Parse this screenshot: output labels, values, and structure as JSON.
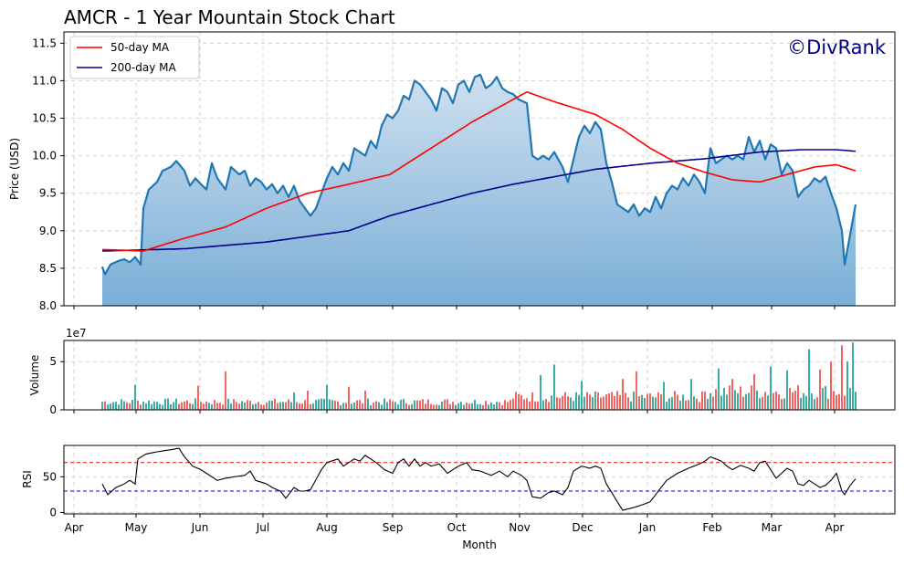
{
  "chart_data": {
    "type": "area",
    "title": "AMCR - 1 Year Mountain Stock Chart",
    "watermark": "©DivRank",
    "xlabel": "Month",
    "x_ticks": [
      "Apr",
      "May",
      "Jun",
      "Jul",
      "Aug",
      "Sep",
      "Oct",
      "Nov",
      "Dec",
      "Jan",
      "Feb",
      "Mar",
      "Apr"
    ],
    "colors": {
      "price": "#1f77b4",
      "area_top": "#cfe0ef",
      "area_bottom": "#7aaed6",
      "ma50": "#ff0000",
      "ma200": "#00008b",
      "vol_up": "#26a69a",
      "vol_down": "#ef5350",
      "rsi": "#000000",
      "rsi_upper": "#ff0000",
      "rsi_lower": "#0000ff",
      "watermark": "#000080"
    },
    "price_panel": {
      "ylabel": "Price (USD)",
      "ylim": [
        8.0,
        11.65
      ],
      "y_ticks": [
        "8.0",
        "8.5",
        "9.0",
        "9.5",
        "10.0",
        "10.5",
        "11.0",
        "11.5"
      ],
      "legend": [
        "50-day MA",
        "200-day MA"
      ],
      "legend_position": "top-left",
      "price_keyframes": [
        [
          0,
          8.52
        ],
        [
          1,
          8.42
        ],
        [
          3,
          8.55
        ],
        [
          6,
          8.6
        ],
        [
          8,
          8.62
        ],
        [
          10,
          8.58
        ],
        [
          12,
          8.65
        ],
        [
          14,
          8.55
        ],
        [
          15,
          9.3
        ],
        [
          17,
          9.55
        ],
        [
          20,
          9.65
        ],
        [
          22,
          9.8
        ],
        [
          25,
          9.85
        ],
        [
          27,
          9.93
        ],
        [
          30,
          9.8
        ],
        [
          32,
          9.6
        ],
        [
          34,
          9.7
        ],
        [
          36,
          9.62
        ],
        [
          38,
          9.55
        ],
        [
          40,
          9.9
        ],
        [
          42,
          9.7
        ],
        [
          45,
          9.55
        ],
        [
          47,
          9.85
        ],
        [
          50,
          9.75
        ],
        [
          52,
          9.8
        ],
        [
          54,
          9.6
        ],
        [
          56,
          9.7
        ],
        [
          58,
          9.65
        ],
        [
          60,
          9.55
        ],
        [
          62,
          9.62
        ],
        [
          64,
          9.5
        ],
        [
          66,
          9.6
        ],
        [
          68,
          9.45
        ],
        [
          70,
          9.6
        ],
        [
          72,
          9.4
        ],
        [
          74,
          9.3
        ],
        [
          76,
          9.2
        ],
        [
          78,
          9.3
        ],
        [
          80,
          9.5
        ],
        [
          82,
          9.7
        ],
        [
          84,
          9.85
        ],
        [
          86,
          9.75
        ],
        [
          88,
          9.9
        ],
        [
          90,
          9.8
        ],
        [
          92,
          10.1
        ],
        [
          94,
          10.05
        ],
        [
          96,
          10.0
        ],
        [
          98,
          10.2
        ],
        [
          100,
          10.1
        ],
        [
          102,
          10.4
        ],
        [
          104,
          10.55
        ],
        [
          106,
          10.5
        ],
        [
          108,
          10.6
        ],
        [
          110,
          10.8
        ],
        [
          112,
          10.75
        ],
        [
          114,
          11.0
        ],
        [
          116,
          10.95
        ],
        [
          118,
          10.85
        ],
        [
          120,
          10.75
        ],
        [
          122,
          10.6
        ],
        [
          124,
          10.9
        ],
        [
          126,
          10.85
        ],
        [
          128,
          10.7
        ],
        [
          130,
          10.95
        ],
        [
          132,
          11.0
        ],
        [
          134,
          10.85
        ],
        [
          136,
          11.05
        ],
        [
          138,
          11.08
        ],
        [
          140,
          10.9
        ],
        [
          142,
          10.95
        ],
        [
          144,
          11.05
        ],
        [
          146,
          10.9
        ],
        [
          148,
          10.85
        ],
        [
          150,
          10.82
        ],
        [
          152,
          10.75
        ],
        [
          155,
          10.7
        ],
        [
          157,
          10.0
        ],
        [
          159,
          9.95
        ],
        [
          161,
          10.0
        ],
        [
          163,
          9.95
        ],
        [
          165,
          10.05
        ],
        [
          168,
          9.85
        ],
        [
          170,
          9.65
        ],
        [
          172,
          9.95
        ],
        [
          174,
          10.25
        ],
        [
          176,
          10.4
        ],
        [
          178,
          10.3
        ],
        [
          180,
          10.45
        ],
        [
          182,
          10.35
        ],
        [
          184,
          9.9
        ],
        [
          186,
          9.65
        ],
        [
          188,
          9.35
        ],
        [
          190,
          9.3
        ],
        [
          192,
          9.25
        ],
        [
          194,
          9.35
        ],
        [
          196,
          9.2
        ],
        [
          198,
          9.3
        ],
        [
          200,
          9.25
        ],
        [
          202,
          9.45
        ],
        [
          204,
          9.3
        ],
        [
          206,
          9.5
        ],
        [
          208,
          9.6
        ],
        [
          210,
          9.55
        ],
        [
          212,
          9.7
        ],
        [
          214,
          9.6
        ],
        [
          216,
          9.75
        ],
        [
          218,
          9.65
        ],
        [
          220,
          9.5
        ],
        [
          222,
          10.1
        ],
        [
          224,
          9.9
        ],
        [
          226,
          9.95
        ],
        [
          228,
          10.0
        ],
        [
          230,
          9.95
        ],
        [
          232,
          10.0
        ],
        [
          234,
          9.95
        ],
        [
          236,
          10.25
        ],
        [
          238,
          10.05
        ],
        [
          240,
          10.2
        ],
        [
          242,
          9.95
        ],
        [
          244,
          10.15
        ],
        [
          246,
          10.1
        ],
        [
          248,
          9.75
        ],
        [
          250,
          9.9
        ],
        [
          252,
          9.8
        ],
        [
          254,
          9.45
        ],
        [
          256,
          9.55
        ],
        [
          258,
          9.6
        ],
        [
          260,
          9.7
        ],
        [
          262,
          9.65
        ],
        [
          264,
          9.72
        ],
        [
          266,
          9.5
        ],
        [
          268,
          9.3
        ],
        [
          270,
          9.0
        ],
        [
          271,
          8.55
        ],
        [
          273,
          8.95
        ],
        [
          275,
          9.35
        ]
      ],
      "ma50_keyframes": [
        [
          0,
          8.75
        ],
        [
          15,
          8.73
        ],
        [
          30,
          8.9
        ],
        [
          45,
          9.05
        ],
        [
          60,
          9.3
        ],
        [
          75,
          9.5
        ],
        [
          90,
          9.62
        ],
        [
          105,
          9.75
        ],
        [
          120,
          10.1
        ],
        [
          135,
          10.45
        ],
        [
          150,
          10.75
        ],
        [
          155,
          10.85
        ],
        [
          165,
          10.72
        ],
        [
          180,
          10.55
        ],
        [
          190,
          10.35
        ],
        [
          200,
          10.1
        ],
        [
          210,
          9.9
        ],
        [
          220,
          9.78
        ],
        [
          230,
          9.68
        ],
        [
          240,
          9.65
        ],
        [
          250,
          9.75
        ],
        [
          260,
          9.85
        ],
        [
          268,
          9.88
        ],
        [
          275,
          9.8
        ]
      ],
      "ma200_keyframes": [
        [
          0,
          8.73
        ],
        [
          30,
          8.76
        ],
        [
          60,
          8.85
        ],
        [
          90,
          9.0
        ],
        [
          105,
          9.2
        ],
        [
          120,
          9.35
        ],
        [
          135,
          9.5
        ],
        [
          150,
          9.62
        ],
        [
          165,
          9.72
        ],
        [
          180,
          9.82
        ],
        [
          200,
          9.9
        ],
        [
          220,
          9.96
        ],
        [
          240,
          10.05
        ],
        [
          255,
          10.08
        ],
        [
          268,
          10.08
        ],
        [
          275,
          10.06
        ]
      ]
    },
    "volume_panel": {
      "ylabel": "Volume",
      "scale_label": "1e7",
      "ylim": [
        0,
        7.2
      ],
      "y_ticks": [
        "0",
        "5"
      ],
      "spikes": [
        [
          12,
          2.6
        ],
        [
          35,
          2.5
        ],
        [
          45,
          4.0
        ],
        [
          70,
          1.8
        ],
        [
          75,
          2.0
        ],
        [
          82,
          2.6
        ],
        [
          90,
          2.4
        ],
        [
          96,
          2.0
        ],
        [
          160,
          3.6
        ],
        [
          165,
          4.7
        ],
        [
          175,
          3.0
        ],
        [
          190,
          3.2
        ],
        [
          195,
          4.0
        ],
        [
          205,
          2.9
        ],
        [
          215,
          3.2
        ],
        [
          225,
          4.3
        ],
        [
          230,
          3.2
        ],
        [
          238,
          3.7
        ],
        [
          244,
          4.5
        ],
        [
          250,
          4.1
        ],
        [
          258,
          6.3
        ],
        [
          262,
          4.2
        ],
        [
          266,
          5.0
        ],
        [
          270,
          6.7
        ],
        [
          272,
          5.0
        ],
        [
          274,
          7.0
        ]
      ]
    },
    "rsi_panel": {
      "ylabel": "RSI",
      "ylim": [
        -2,
        94
      ],
      "y_ticks": [
        "0",
        "50"
      ],
      "overbought": 70,
      "oversold": 30,
      "keyframes": [
        [
          0,
          40
        ],
        [
          2,
          25
        ],
        [
          5,
          35
        ],
        [
          8,
          40
        ],
        [
          10,
          45
        ],
        [
          12,
          40
        ],
        [
          13,
          75
        ],
        [
          16,
          82
        ],
        [
          20,
          85
        ],
        [
          25,
          88
        ],
        [
          28,
          90
        ],
        [
          30,
          78
        ],
        [
          33,
          65
        ],
        [
          36,
          60
        ],
        [
          38,
          55
        ],
        [
          40,
          50
        ],
        [
          42,
          45
        ],
        [
          45,
          48
        ],
        [
          48,
          50
        ],
        [
          52,
          52
        ],
        [
          54,
          58
        ],
        [
          56,
          45
        ],
        [
          60,
          40
        ],
        [
          62,
          35
        ],
        [
          65,
          30
        ],
        [
          67,
          20
        ],
        [
          70,
          35
        ],
        [
          72,
          30
        ],
        [
          74,
          30
        ],
        [
          76,
          32
        ],
        [
          80,
          60
        ],
        [
          82,
          70
        ],
        [
          86,
          75
        ],
        [
          88,
          65
        ],
        [
          90,
          70
        ],
        [
          92,
          75
        ],
        [
          94,
          72
        ],
        [
          96,
          80
        ],
        [
          98,
          75
        ],
        [
          100,
          70
        ],
        [
          103,
          60
        ],
        [
          106,
          55
        ],
        [
          108,
          70
        ],
        [
          110,
          75
        ],
        [
          112,
          65
        ],
        [
          114,
          75
        ],
        [
          116,
          65
        ],
        [
          118,
          70
        ],
        [
          120,
          65
        ],
        [
          123,
          68
        ],
        [
          126,
          55
        ],
        [
          128,
          60
        ],
        [
          130,
          65
        ],
        [
          133,
          70
        ],
        [
          135,
          60
        ],
        [
          138,
          58
        ],
        [
          140,
          55
        ],
        [
          142,
          52
        ],
        [
          145,
          58
        ],
        [
          148,
          50
        ],
        [
          150,
          58
        ],
        [
          153,
          52
        ],
        [
          155,
          45
        ],
        [
          157,
          22
        ],
        [
          160,
          20
        ],
        [
          163,
          28
        ],
        [
          165,
          30
        ],
        [
          168,
          25
        ],
        [
          170,
          35
        ],
        [
          172,
          58
        ],
        [
          175,
          65
        ],
        [
          178,
          62
        ],
        [
          180,
          65
        ],
        [
          182,
          62
        ],
        [
          184,
          40
        ],
        [
          186,
          28
        ],
        [
          188,
          15
        ],
        [
          190,
          3
        ],
        [
          192,
          5
        ],
        [
          195,
          8
        ],
        [
          198,
          12
        ],
        [
          200,
          15
        ],
        [
          203,
          30
        ],
        [
          206,
          45
        ],
        [
          210,
          55
        ],
        [
          214,
          62
        ],
        [
          218,
          68
        ],
        [
          220,
          72
        ],
        [
          222,
          78
        ],
        [
          224,
          75
        ],
        [
          226,
          72
        ],
        [
          228,
          65
        ],
        [
          230,
          60
        ],
        [
          233,
          66
        ],
        [
          236,
          62
        ],
        [
          238,
          58
        ],
        [
          240,
          70
        ],
        [
          242,
          72
        ],
        [
          244,
          60
        ],
        [
          246,
          48
        ],
        [
          248,
          55
        ],
        [
          250,
          62
        ],
        [
          252,
          58
        ],
        [
          254,
          40
        ],
        [
          256,
          38
        ],
        [
          258,
          45
        ],
        [
          260,
          40
        ],
        [
          262,
          35
        ],
        [
          264,
          38
        ],
        [
          266,
          45
        ],
        [
          268,
          55
        ],
        [
          270,
          30
        ],
        [
          271,
          25
        ],
        [
          273,
          38
        ],
        [
          275,
          47
        ]
      ]
    }
  }
}
